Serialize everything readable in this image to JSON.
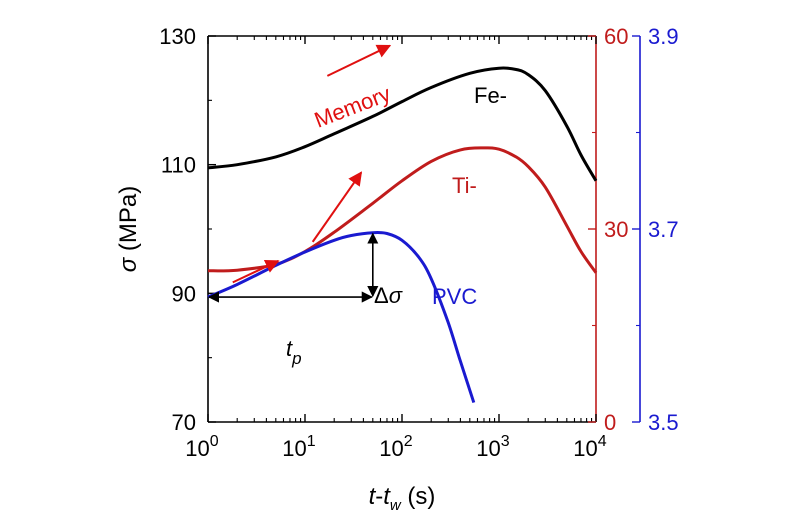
{
  "chart_data": {
    "type": "line",
    "xscale": "log",
    "xlim": [
      1,
      10000
    ],
    "xticks": [
      {
        "value": 1,
        "label": "10",
        "exp": "0"
      },
      {
        "value": 10,
        "label": "10",
        "exp": "1"
      },
      {
        "value": 100,
        "label": "10",
        "exp": "2"
      },
      {
        "value": 1000,
        "label": "10",
        "exp": "3"
      },
      {
        "value": 10000,
        "label": "10",
        "exp": "4"
      }
    ],
    "xlabel": {
      "t1": "t",
      "dash": "-",
      "t2": "t",
      "sub": "w",
      "unit": " (s)"
    },
    "ylabel": {
      "sym": "σ",
      "unit": " (MPa)"
    },
    "yleft": {
      "lim": [
        70,
        130
      ],
      "ticks": [
        "130",
        "110",
        "90",
        "70"
      ],
      "color": "#000000"
    },
    "yright1": {
      "lim": [
        0,
        60
      ],
      "ticks": [
        "60",
        "30",
        "0"
      ],
      "color": "#c01c1c"
    },
    "yright2": {
      "lim": [
        3.5,
        3.9
      ],
      "ticks": [
        "3.9",
        "3.7",
        "3.5"
      ],
      "color": "#1a1ad0"
    },
    "series": [
      {
        "name": "Fe-",
        "axis": "yleft",
        "color": "#000000",
        "x": [
          1,
          2,
          5,
          10,
          20,
          50,
          100,
          200,
          500,
          1000,
          1500,
          2000,
          3000,
          5000,
          7000,
          10000
        ],
        "y": [
          109.5,
          110,
          111.2,
          112.8,
          114.8,
          117.5,
          119.8,
          122,
          124.2,
          125,
          124.8,
          124,
          121.5,
          116,
          111.5,
          107.5
        ]
      },
      {
        "name": "Ti-",
        "axis": "yright1",
        "color": "#c01c1c",
        "x": [
          1,
          2,
          5,
          10,
          20,
          50,
          100,
          200,
          400,
          700,
          1000,
          1500,
          2000,
          3000,
          5000,
          7000,
          10000
        ],
        "y": [
          23.5,
          23.6,
          24.5,
          26.5,
          29.5,
          34,
          37.5,
          40.5,
          42.3,
          42.6,
          42.4,
          41.2,
          39.7,
          36.5,
          30.5,
          26.5,
          23.2
        ]
      },
      {
        "name": "PVC",
        "axis": "yright2",
        "color": "#1a1ad0",
        "x": [
          1,
          2,
          5,
          10,
          20,
          30,
          50,
          70,
          100,
          150,
          200,
          300,
          400,
          550
        ],
        "y": [
          3.6295,
          3.6425,
          3.6623,
          3.6762,
          3.6883,
          3.6933,
          3.6962,
          3.6953,
          3.6883,
          3.6704,
          3.6485,
          3.6029,
          3.563,
          3.5201
        ]
      }
    ],
    "annotations": {
      "memory_text": "Memory",
      "arrows": [
        {
          "x1": 17,
          "y1": 123.8,
          "x2": 75,
          "y2": 128.5
        },
        {
          "x1": 12,
          "y1": 28,
          "x2": 38,
          "y2": 38.8
        },
        {
          "x1": 1.8,
          "y1": 3.6447,
          "x2": 5.3,
          "y2": 3.6669
        }
      ],
      "tp": {
        "label": "t",
        "sub": "p",
        "x1": 1,
        "x2": 50,
        "y": 3.6295,
        "axis": "yright2"
      },
      "dsigma": {
        "label": "Δσ",
        "x": 50,
        "y1": 3.6295,
        "y2": 3.6962,
        "axis": "yright2"
      }
    }
  }
}
